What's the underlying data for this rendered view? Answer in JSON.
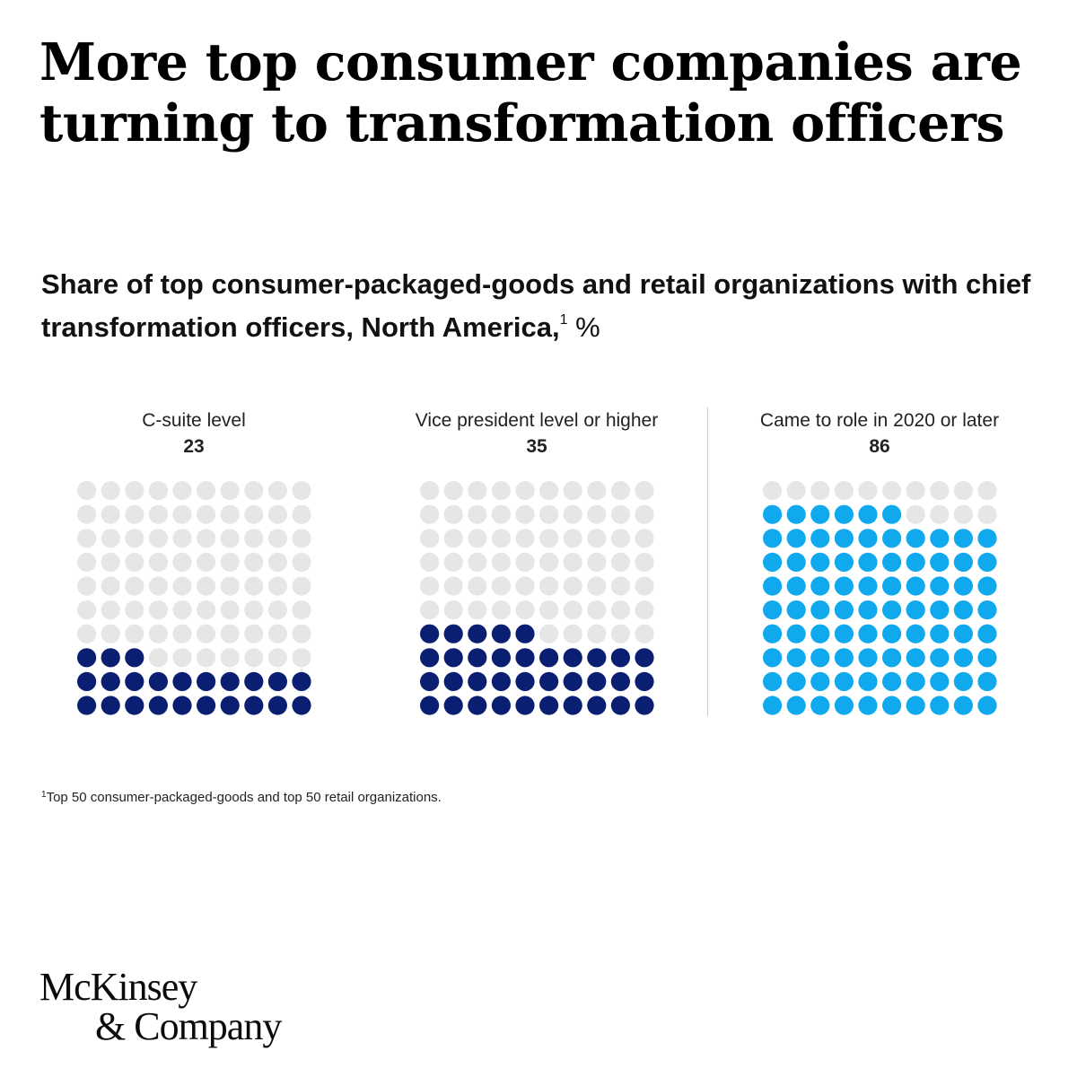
{
  "header": {
    "title": "More top consumer companies are turning to transformation officers"
  },
  "chart_data": {
    "type": "waffle",
    "subtitle": "Share of top consumer-packaged-goods and retail organizations with chief transformation officers, North America,",
    "subtitle_footnote_mark": "1",
    "unit": "%",
    "grid": {
      "rows": 10,
      "cols": 10
    },
    "empty_color": "#e6e6e6",
    "panels": [
      {
        "label": "C-suite level",
        "value": 23,
        "color": "#0a1f72"
      },
      {
        "label": "Vice president level or higher",
        "value": 35,
        "color": "#0a1f72"
      },
      {
        "label": "Came to role in 2020 or later",
        "value": 86,
        "color": "#10a9ee"
      }
    ]
  },
  "footnote": {
    "mark": "1",
    "text": "Top 50 consumer-packaged-goods and top 50 retail organizations."
  },
  "brand": {
    "line1": "McKinsey",
    "line2": "& Company"
  }
}
